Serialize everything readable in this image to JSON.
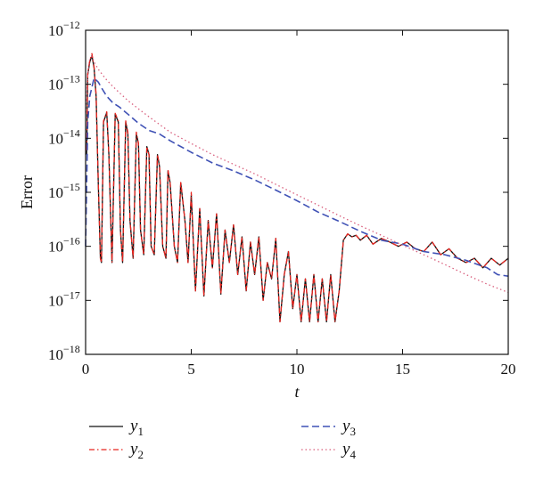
{
  "chart_data": {
    "type": "line",
    "xlabel": "t",
    "ylabel": "Error",
    "xlim": [
      0,
      20
    ],
    "ylim": [
      1e-18,
      1e-12
    ],
    "y_scale": "log",
    "grid": false,
    "legend_position": "bottom (below plot, two columns)",
    "x_ticks": [
      0,
      5,
      10,
      15,
      20
    ],
    "y_ticks": [
      {
        "value": 1e-18,
        "base": "10",
        "exp": "−18"
      },
      {
        "value": 1e-17,
        "base": "10",
        "exp": "−17"
      },
      {
        "value": 1e-16,
        "base": "10",
        "exp": "−16"
      },
      {
        "value": 1e-15,
        "base": "10",
        "exp": "−15"
      },
      {
        "value": 1e-14,
        "base": "10",
        "exp": "−14"
      },
      {
        "value": 1e-13,
        "base": "10",
        "exp": "−13"
      },
      {
        "value": 1e-12,
        "base": "10",
        "exp": "−12"
      }
    ],
    "series": [
      {
        "name": "y1",
        "label_base": "y",
        "label_sub": "1",
        "color": "#111111",
        "style": "solid",
        "x": [
          0.05,
          0.1,
          0.2,
          0.3,
          0.4,
          0.5,
          0.6,
          0.7,
          0.75,
          0.85,
          1.0,
          1.1,
          1.25,
          1.4,
          1.55,
          1.65,
          1.75,
          1.9,
          2.0,
          2.1,
          2.25,
          2.4,
          2.5,
          2.6,
          2.75,
          2.9,
          3.0,
          3.1,
          3.25,
          3.4,
          3.5,
          3.65,
          3.8,
          3.9,
          4.0,
          4.2,
          4.35,
          4.5,
          4.7,
          4.85,
          5.0,
          5.2,
          5.4,
          5.6,
          5.8,
          6.0,
          6.2,
          6.4,
          6.6,
          6.8,
          7.0,
          7.2,
          7.4,
          7.6,
          7.8,
          8.0,
          8.2,
          8.4,
          8.6,
          8.8,
          9.0,
          9.2,
          9.4,
          9.6,
          9.8,
          10.0,
          10.2,
          10.4,
          10.6,
          10.8,
          11.0,
          11.2,
          11.4,
          11.6,
          11.8,
          12.0,
          12.2,
          12.4,
          12.6,
          12.8,
          13.0,
          13.3,
          13.6,
          14.0,
          14.4,
          14.8,
          15.2,
          15.6,
          16.0,
          16.4,
          16.8,
          17.2,
          17.6,
          18.0,
          18.4,
          18.8,
          19.2,
          19.6,
          20.0
        ],
        "y": [
          5e-15,
          1.5e-13,
          2.6e-13,
          3.4e-13,
          2e-13,
          6e-14,
          1.5e-15,
          6e-17,
          5e-17,
          2e-14,
          3e-14,
          5e-15,
          5e-17,
          2.8e-14,
          2e-14,
          2e-16,
          5e-17,
          2e-14,
          1.2e-14,
          3e-16,
          6e-17,
          1.2e-14,
          8e-15,
          2e-16,
          7e-17,
          7e-15,
          5e-15,
          1e-16,
          7e-17,
          5e-15,
          3e-15,
          1e-16,
          6e-17,
          2.5e-15,
          1.5e-15,
          1e-16,
          5e-17,
          1.5e-15,
          3e-16,
          5e-17,
          9e-16,
          1.5e-17,
          5e-16,
          1.2e-17,
          3e-16,
          4e-17,
          4e-16,
          1.3e-17,
          2e-16,
          5e-17,
          2.5e-16,
          3e-17,
          1.5e-16,
          1.5e-17,
          1.2e-16,
          3e-17,
          1.5e-16,
          1e-17,
          5e-17,
          2.5e-17,
          1.4e-16,
          4e-18,
          3e-17,
          8e-17,
          7e-18,
          3e-17,
          4e-18,
          2.5e-17,
          4e-18,
          3e-17,
          4e-18,
          2.5e-17,
          4e-18,
          3e-17,
          4e-18,
          1.5e-17,
          1.3e-16,
          1.7e-16,
          1.5e-16,
          1.6e-16,
          1.3e-16,
          1.6e-16,
          1.1e-16,
          1.4e-16,
          1.2e-16,
          1e-16,
          1.2e-16,
          9e-17,
          8e-17,
          1.2e-16,
          7e-17,
          9e-17,
          6e-17,
          5e-17,
          6e-17,
          4e-17,
          6e-17,
          4.5e-17,
          6e-17
        ]
      },
      {
        "name": "y2",
        "label_base": "y",
        "label_sub": "2",
        "color": "#e8251f",
        "style": "dashdot",
        "x": [
          0.05,
          0.1,
          0.2,
          0.3,
          0.4,
          0.5,
          0.6,
          0.7,
          0.75,
          0.85,
          1.0,
          1.1,
          1.25,
          1.4,
          1.55,
          1.65,
          1.75,
          1.9,
          2.0,
          2.1,
          2.25,
          2.4,
          2.5,
          2.6,
          2.75,
          2.9,
          3.0,
          3.1,
          3.25,
          3.4,
          3.5,
          3.65,
          3.8,
          3.9,
          4.0,
          4.2,
          4.35,
          4.5,
          4.7,
          4.85,
          5.0,
          5.2,
          5.4,
          5.6,
          5.8,
          6.0,
          6.2,
          6.4,
          6.6,
          6.8,
          7.0,
          7.2,
          7.4,
          7.6,
          7.8,
          8.0,
          8.2,
          8.4,
          8.6,
          8.8,
          9.0,
          9.2,
          9.4,
          9.6,
          9.8,
          10.0,
          10.2,
          10.4,
          10.6,
          10.8,
          11.0,
          11.2,
          11.4,
          11.6,
          11.8,
          12.0,
          12.2,
          12.4,
          12.6,
          12.8,
          13.0,
          13.3,
          13.6,
          14.0,
          14.4,
          14.8,
          15.2,
          15.6,
          16.0,
          16.4,
          16.8,
          17.2,
          17.6,
          18.0,
          18.4,
          18.8,
          19.2,
          19.6,
          20.0
        ],
        "y": [
          6e-15,
          1.6e-13,
          2.8e-13,
          3.7e-13,
          2.1e-13,
          6.5e-14,
          1.6e-15,
          6e-17,
          5e-17,
          2.1e-14,
          3.1e-14,
          5e-15,
          5e-17,
          2.9e-14,
          2.1e-14,
          2e-16,
          5e-17,
          2.1e-14,
          1.3e-14,
          3e-16,
          6e-17,
          1.3e-14,
          8e-15,
          2e-16,
          7e-17,
          7e-15,
          5e-15,
          1e-16,
          7e-17,
          5e-15,
          3e-15,
          1e-16,
          6e-17,
          2.6e-15,
          1.5e-15,
          1e-16,
          5e-17,
          1.6e-15,
          3e-16,
          5e-17,
          1e-15,
          1.5e-17,
          5e-16,
          1.2e-17,
          3e-16,
          4e-17,
          4e-16,
          1.3e-17,
          2e-16,
          5e-17,
          2.5e-16,
          3e-17,
          1.5e-16,
          1.5e-17,
          1.2e-16,
          3e-17,
          1.5e-16,
          1e-17,
          5e-17,
          2.5e-17,
          1.4e-16,
          4e-18,
          3e-17,
          8e-17,
          7e-18,
          3e-17,
          4e-18,
          2.5e-17,
          4e-18,
          3e-17,
          4e-18,
          2.5e-17,
          4e-18,
          3e-17,
          4e-18,
          1.5e-17,
          1.3e-16,
          1.7e-16,
          1.5e-16,
          1.6e-16,
          1.3e-16,
          1.6e-16,
          1.1e-16,
          1.4e-16,
          1.2e-16,
          1e-16,
          1.2e-16,
          9e-17,
          8e-17,
          1.2e-16,
          7e-17,
          9e-17,
          6e-17,
          5e-17,
          6e-17,
          4e-17,
          6e-17,
          4.5e-17,
          6e-17
        ]
      },
      {
        "name": "y3",
        "label_base": "y",
        "label_sub": "3",
        "color": "#3f51b5",
        "style": "dashed",
        "x": [
          0.0,
          0.1,
          0.2,
          0.4,
          0.6,
          0.8,
          1.0,
          1.3,
          1.6,
          2.0,
          2.5,
          3.0,
          3.5,
          4.0,
          5.0,
          6.0,
          7.0,
          8.0,
          9.0,
          10.0,
          11.0,
          12.0,
          13.0,
          14.0,
          15.0,
          16.0,
          17.0,
          18.0,
          19.0,
          19.5,
          20.0
        ],
        "y": [
          1e-16,
          2e-14,
          6e-14,
          1.3e-13,
          1.1e-13,
          8e-14,
          6e-14,
          4.5e-14,
          3.8e-14,
          2.8e-14,
          1.9e-14,
          1.4e-14,
          1.2e-14,
          9e-15,
          5.5e-15,
          3.5e-15,
          2.5e-15,
          1.7e-15,
          1.1e-15,
          7e-16,
          4.3e-16,
          2.9e-16,
          1.9e-16,
          1.3e-16,
          1.1e-16,
          8e-17,
          7e-17,
          5.5e-17,
          4e-17,
          3e-17,
          2.8e-17
        ]
      },
      {
        "name": "y4",
        "label_base": "y",
        "label_sub": "4",
        "color": "#d9607e",
        "style": "dotted",
        "x": [
          0.0,
          0.1,
          0.2,
          0.3,
          0.4,
          0.6,
          0.8,
          1.0,
          1.3,
          1.6,
          2.0,
          2.5,
          3.0,
          3.5,
          4.0,
          5.0,
          6.0,
          7.0,
          8.0,
          9.0,
          10.0,
          11.0,
          12.0,
          13.0,
          14.0,
          15.0,
          16.0,
          17.0,
          18.0,
          19.0,
          20.0
        ],
        "y": [
          3e-14,
          1.5e-13,
          3e-13,
          3.3e-13,
          2.6e-13,
          1.9e-13,
          1.5e-13,
          1.2e-13,
          9e-14,
          7e-14,
          5e-14,
          3.5e-14,
          2.5e-14,
          1.8e-14,
          1.3e-14,
          8e-15,
          5e-15,
          3.3e-15,
          2.2e-15,
          1.4e-15,
          9e-16,
          5.8e-16,
          3.7e-16,
          2.4e-16,
          1.6e-16,
          1.05e-16,
          7e-17,
          4.6e-17,
          3e-17,
          2e-17,
          1.4e-17
        ]
      }
    ]
  }
}
